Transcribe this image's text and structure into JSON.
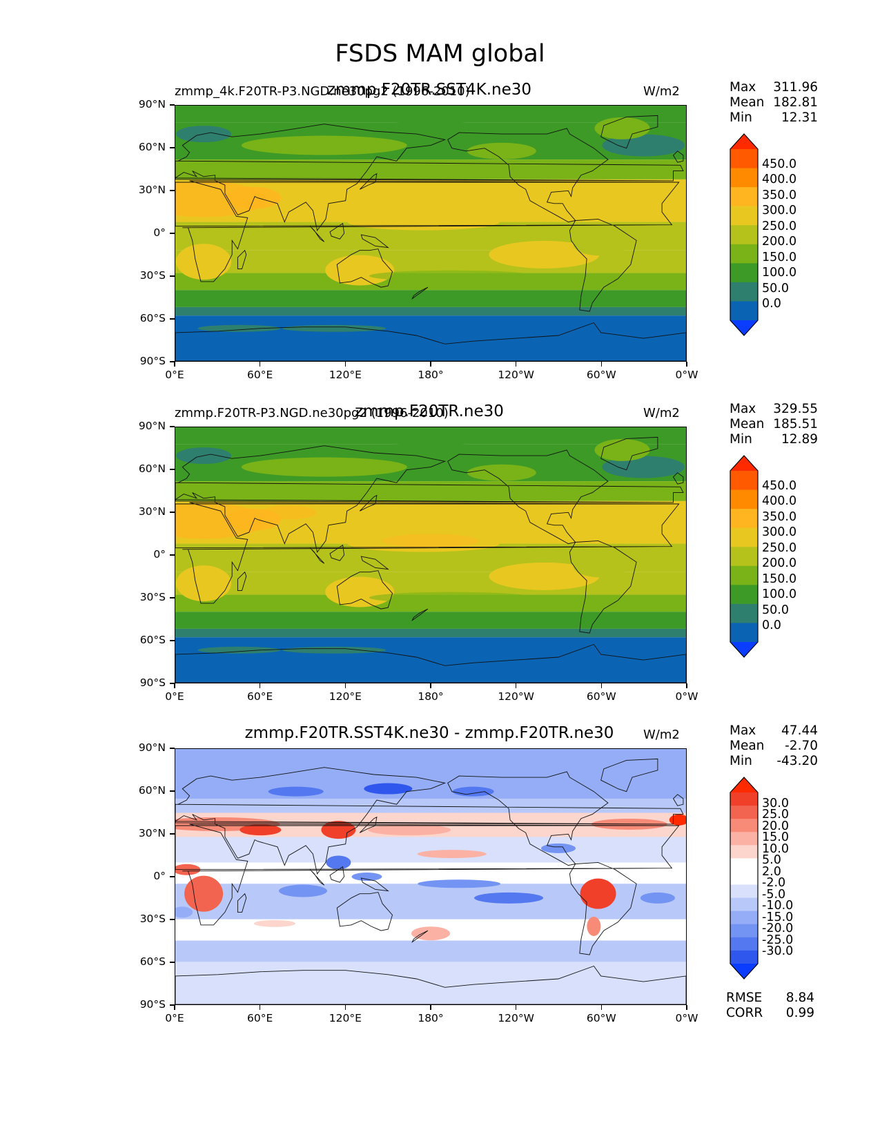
{
  "figure": {
    "title": "FSDS MAM global",
    "units": "W/m2"
  },
  "axes": {
    "lat_labels": [
      "90°N",
      "60°N",
      "30°N",
      "0°",
      "30°S",
      "60°S",
      "90°S"
    ],
    "lon_labels": [
      "0°E",
      "60°E",
      "120°E",
      "180°",
      "120°W",
      "60°W",
      "0°W"
    ]
  },
  "panels": [
    {
      "left_caption": "zmmp_4k.F20TR-P3.NGD.ne30pg2 (1996-2010)",
      "center_caption": "zmmp.F20TR.SST4K.ne30",
      "units": "W/m2",
      "stats": [
        {
          "k": "Max",
          "v": "311.96"
        },
        {
          "k": "Mean",
          "v": "182.81"
        },
        {
          "k": "Min",
          "v": "12.31"
        }
      ],
      "colorbar_labels": [
        "450.0",
        "400.0",
        "350.0",
        "300.0",
        "250.0",
        "200.0",
        "150.0",
        "100.0",
        "50.0",
        "0.0"
      ]
    },
    {
      "left_caption": "zmmp.F20TR-P3.NGD.ne30pg2 (1996-2010)",
      "center_caption": "zmmp.F20TR.ne30",
      "units": "W/m2",
      "stats": [
        {
          "k": "Max",
          "v": "329.55"
        },
        {
          "k": "Mean",
          "v": "185.51"
        },
        {
          "k": "Min",
          "v": "12.89"
        }
      ],
      "colorbar_labels": [
        "450.0",
        "400.0",
        "350.0",
        "300.0",
        "250.0",
        "200.0",
        "150.0",
        "100.0",
        "50.0",
        "0.0"
      ]
    },
    {
      "left_caption": "",
      "center_caption": "zmmp.F20TR.SST4K.ne30 - zmmp.F20TR.ne30",
      "units": "W/m2",
      "stats": [
        {
          "k": "Max",
          "v": "47.44"
        },
        {
          "k": "Mean",
          "v": "-2.70"
        },
        {
          "k": "Min",
          "v": "-43.20"
        }
      ],
      "colorbar_labels": [
        "30.0",
        "25.0",
        "20.0",
        "15.0",
        "10.0",
        "5.0",
        "2.0",
        "-2.0",
        "-5.0",
        "-10.0",
        "-15.0",
        "-20.0",
        "-25.0",
        "-30.0"
      ],
      "metrics": [
        {
          "k": "RMSE",
          "v": "8.84"
        },
        {
          "k": "CORR",
          "v": "0.99"
        }
      ]
    }
  ],
  "palettes": {
    "field": [
      "#ff2a00",
      "#ff5a00",
      "#ff8a00",
      "#ffb520",
      "#e8c820",
      "#b5c21b",
      "#7ab317",
      "#3d9a27",
      "#2f7f6e",
      "#0a63b3",
      "#0a3dff"
    ],
    "diff": [
      "#ff2a00",
      "#f0402a",
      "#f36450",
      "#f88a78",
      "#fbb2a4",
      "#fcd5cc",
      "#ffffff",
      "#ffffff",
      "#d8e0fb",
      "#b8c8f9",
      "#94adf6",
      "#7394f3",
      "#5378f0",
      "#2f56ed",
      "#0a3dff"
    ]
  }
}
